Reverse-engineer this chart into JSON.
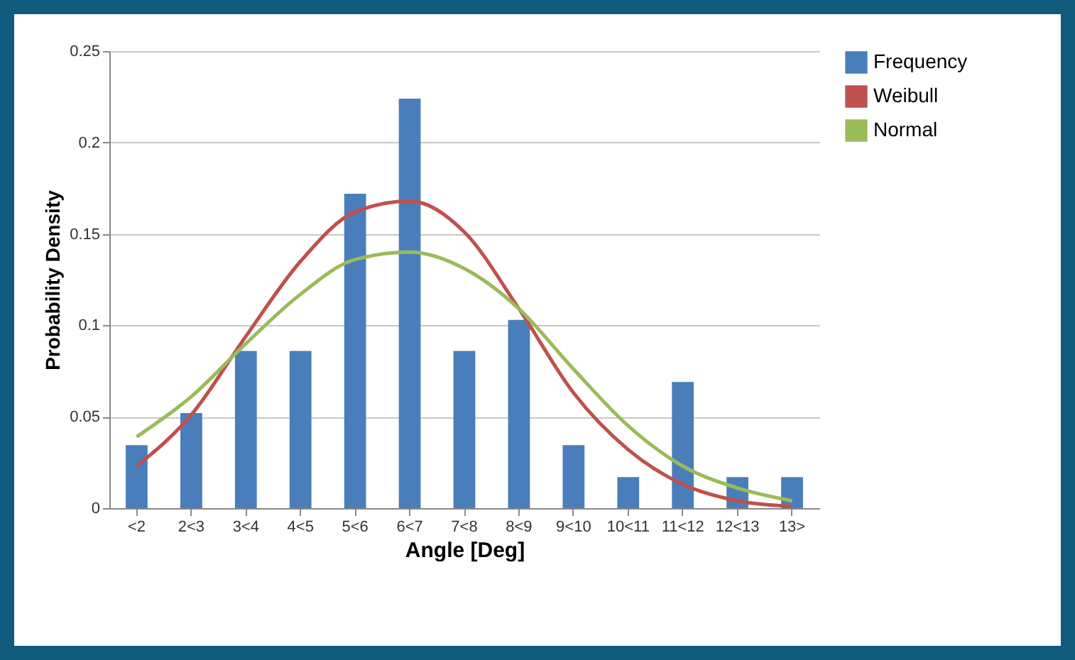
{
  "chart_data": {
    "type": "bar",
    "xlabel": "Angle [Deg]",
    "ylabel": "Probability Density",
    "categories": [
      "<2",
      "2<3",
      "3<4",
      "4<5",
      "5<6",
      "6<7",
      "7<8",
      "8<9",
      "9<10",
      "10<11",
      "11<12",
      "12<13",
      "13>"
    ],
    "series": [
      {
        "name": "Frequency",
        "color": "#4a7ebb",
        "values": [
          0.0345,
          0.052,
          0.086,
          0.086,
          0.172,
          0.224,
          0.086,
          0.103,
          0.0345,
          0.017,
          0.069,
          0.017,
          0.017
        ]
      },
      {
        "name": "Weibull",
        "type": "line",
        "color": "#c0504d",
        "values": [
          0.023,
          0.051,
          0.094,
          0.135,
          0.162,
          0.168,
          0.151,
          0.109,
          0.063,
          0.032,
          0.013,
          0.004,
          0.001
        ]
      },
      {
        "name": "Normal",
        "type": "line",
        "color": "#9bbb59",
        "values": [
          0.039,
          0.061,
          0.09,
          0.117,
          0.136,
          0.14,
          0.131,
          0.109,
          0.076,
          0.045,
          0.023,
          0.011,
          0.004
        ]
      }
    ],
    "ylim": [
      0,
      0.25
    ],
    "yticks": [
      0,
      0.05,
      0.1,
      0.15,
      0.2,
      0.25
    ],
    "grid": "y",
    "legend": "right"
  }
}
